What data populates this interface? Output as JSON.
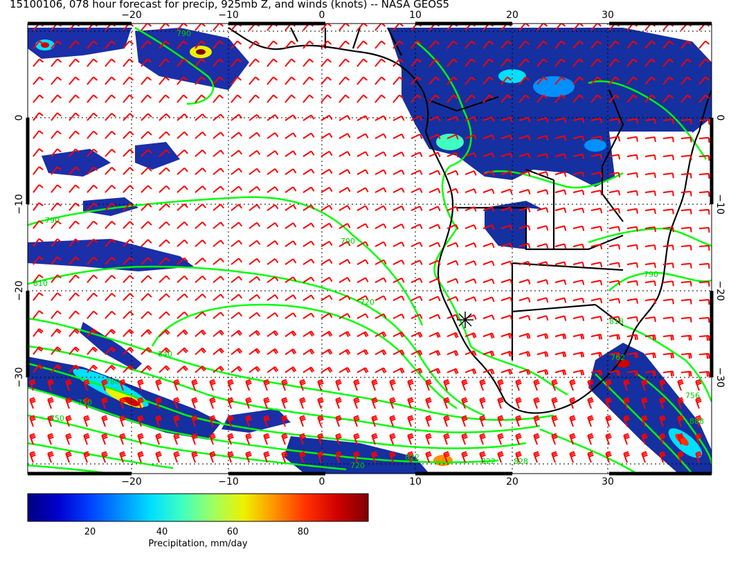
{
  "title": "15100106, 078 hour forecast for precip, 925mb Z, and winds (knots) -- NASA GEOS5",
  "lon_ticks": [
    "−20",
    "−10",
    "0",
    "10",
    "20",
    "30"
  ],
  "lat_ticks": [
    "0",
    "−10",
    "−20",
    "−30"
  ],
  "contour_labels": [
    "790",
    "790",
    "790",
    "810",
    "840",
    "720",
    "750",
    "750",
    "720",
    "780",
    "790",
    "818",
    "822",
    "822",
    "828",
    "756",
    "888",
    "762"
  ],
  "colorbar": {
    "title": "Precipitation, mm/day",
    "tick_labels": [
      "20",
      "40",
      "60",
      "80"
    ],
    "colors": [
      "#00007f",
      "#0000d0",
      "#0040ff",
      "#0090ff",
      "#00e0ff",
      "#40ffc0",
      "#a0ff60",
      "#f0f000",
      "#ff9000",
      "#ff3000",
      "#d00000",
      "#7f0000"
    ]
  },
  "colors": {
    "wind_barb": "#ff0000",
    "contour": "#00ff00",
    "coast": "#000000"
  }
}
